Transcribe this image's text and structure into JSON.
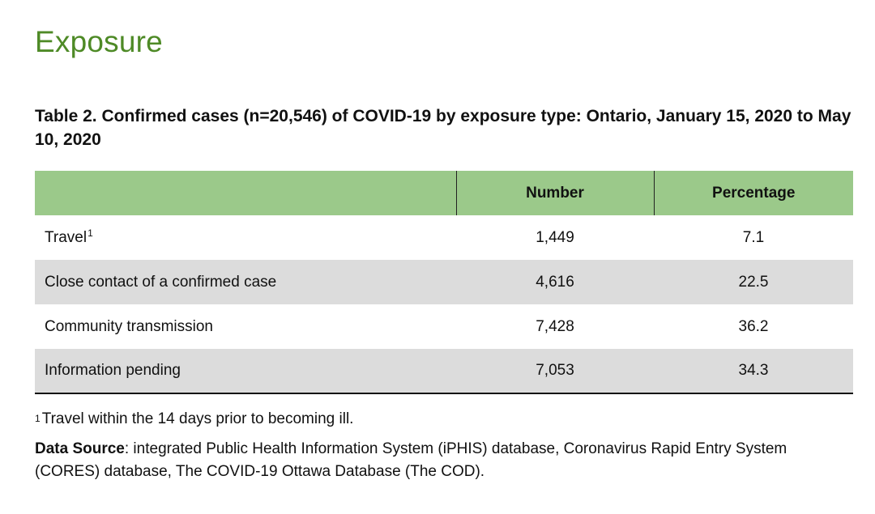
{
  "heading": "Exposure",
  "table": {
    "title": "Table 2. Confirmed cases (n=20,546) of COVID-19 by exposure type: Ontario, January 15, 2020 to May 10, 2020",
    "columns": [
      "",
      "Number",
      "Percentage"
    ],
    "rows": [
      {
        "label": "Travel",
        "sup": "1",
        "number": "1,449",
        "percentage": "7.1"
      },
      {
        "label": "Close contact of a confirmed case",
        "sup": "",
        "number": "4,616",
        "percentage": "22.5"
      },
      {
        "label": "Community transmission",
        "sup": "",
        "number": "7,428",
        "percentage": "36.2"
      },
      {
        "label": "Information pending",
        "sup": "",
        "number": "7,053",
        "percentage": "34.3"
      }
    ]
  },
  "footnote": {
    "mark": "1",
    "text": "Travel within the 14 days prior to becoming ill."
  },
  "data_source": {
    "label": "Data Source",
    "text": ": integrated Public Health Information System (iPHIS) database, Coronavirus Rapid Entry System (CORES) database, The COVID-19 Ottawa Database (The COD)."
  },
  "colors": {
    "heading": "#4e8a26",
    "header_row": "#9bc98a",
    "shaded_row": "#dcdcdc"
  }
}
